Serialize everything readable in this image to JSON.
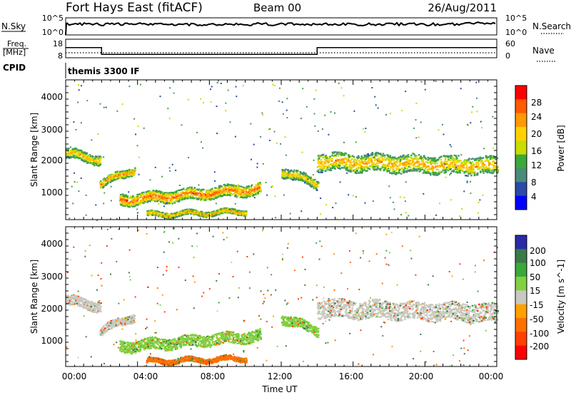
{
  "header": {
    "station": "Fort Hays East (fitACF)",
    "beam": "Beam 00",
    "date": "26/Aug/2011"
  },
  "noise_panel": {
    "left_label": "N.Sky",
    "right_label": "N.Search",
    "left_ticks": [
      "10^5",
      "10^0"
    ],
    "right_ticks": [
      "10^5",
      "10^0"
    ]
  },
  "freq_panel": {
    "left_label_top": "Freq.",
    "left_label_unit": "[MHz]",
    "right_label": "Nave",
    "left_ticks": [
      "18",
      "8"
    ],
    "right_ticks": [
      "60",
      "0"
    ],
    "freq_mhz_series": [
      {
        "from_ut": 0.0,
        "to_ut": 2.0,
        "mhz": 15.5
      },
      {
        "from_ut": 2.0,
        "to_ut": 14.0,
        "mhz": 10.5
      },
      {
        "from_ut": 14.0,
        "to_ut": 24.0,
        "mhz": 15.5
      }
    ]
  },
  "cpid_panel": {
    "label": "CPID",
    "program": "themis 3300 IF"
  },
  "x_axis": {
    "label": "Time UT",
    "ticks": [
      "00:00",
      "04:00",
      "08:00",
      "12:00",
      "16:00",
      "20:00",
      "00:00"
    ],
    "range_hours": [
      0,
      24
    ]
  },
  "power_colorbar": {
    "label": "Power [dB]",
    "ticks": [
      "28",
      "24",
      "20",
      "16",
      "12",
      "8",
      "4"
    ],
    "colors": [
      "#ff0000",
      "#ff5a00",
      "#ff9a00",
      "#ffd200",
      "#c8dc00",
      "#3aa83a",
      "#4a8a7a",
      "#2a4aa8",
      "#0000ff"
    ]
  },
  "velocity_colorbar": {
    "label": "Velocity [m s^-1]",
    "ticks": [
      "200",
      "100",
      "50",
      "15",
      "-15",
      "-50",
      "-100",
      "-200"
    ],
    "colors": [
      "#2a2aa8",
      "#3a7a4a",
      "#3aa83a",
      "#80d040",
      "#c8c8c0",
      "#ffa000",
      "#ff7000",
      "#ff4000",
      "#ff0000"
    ]
  },
  "chart_data": [
    {
      "type": "heatmap",
      "title": "",
      "xlabel": "Time UT",
      "ylabel": "Slant Range [km]",
      "colorbar_label": "Power [dB]",
      "xlim_hours": [
        0,
        24
      ],
      "ylim_km": [
        180,
        4500
      ],
      "y_ticks": [
        "1000",
        "2000",
        "3000",
        "4000"
      ],
      "value_range_db": [
        0,
        30
      ],
      "echo_bands": [
        {
          "from_ut": 0.0,
          "to_ut": 1.9,
          "range_start_km": 2250,
          "range_end_km": 2050,
          "width_km": 300,
          "peak_db": 22
        },
        {
          "from_ut": 1.9,
          "to_ut": 3.8,
          "range_start_km": 1300,
          "range_end_km": 1750,
          "width_km": 250,
          "peak_db": 24
        },
        {
          "from_ut": 3.0,
          "to_ut": 10.8,
          "range_start_km": 800,
          "range_end_km": 1150,
          "width_km": 350,
          "peak_db": 26
        },
        {
          "from_ut": 4.5,
          "to_ut": 10.0,
          "range_start_km": 350,
          "range_end_km": 450,
          "width_km": 150,
          "peak_db": 24
        },
        {
          "from_ut": 12.0,
          "to_ut": 14.0,
          "range_start_km": 1700,
          "range_end_km": 1300,
          "width_km": 300,
          "peak_db": 20
        },
        {
          "from_ut": 14.0,
          "to_ut": 24.0,
          "range_start_km": 2000,
          "range_end_km": 1850,
          "width_km": 550,
          "peak_db": 22
        }
      ]
    },
    {
      "type": "heatmap",
      "title": "",
      "xlabel": "Time UT",
      "ylabel": "Slant Range [km]",
      "colorbar_label": "Velocity [m s^-1]",
      "xlim_hours": [
        0,
        24
      ],
      "ylim_km": [
        180,
        4500
      ],
      "y_ticks": [
        "1000",
        "2000",
        "3000",
        "4000"
      ],
      "value_range_ms": [
        -200,
        200
      ],
      "echo_bands": [
        {
          "from_ut": 0.0,
          "to_ut": 1.9,
          "range_start_km": 2250,
          "range_end_km": 2050,
          "width_km": 300,
          "velocity_ms": 0
        },
        {
          "from_ut": 1.9,
          "to_ut": 3.8,
          "range_start_km": 1300,
          "range_end_km": 1750,
          "width_km": 250,
          "velocity_ms": 0
        },
        {
          "from_ut": 3.0,
          "to_ut": 10.8,
          "range_start_km": 800,
          "range_end_km": 1150,
          "width_km": 350,
          "velocity_ms": 30
        },
        {
          "from_ut": 4.5,
          "to_ut": 10.0,
          "range_start_km": 350,
          "range_end_km": 450,
          "width_km": 150,
          "velocity_ms": -60
        },
        {
          "from_ut": 12.0,
          "to_ut": 14.0,
          "range_start_km": 1700,
          "range_end_km": 1300,
          "width_km": 300,
          "velocity_ms": 40
        },
        {
          "from_ut": 14.0,
          "to_ut": 24.0,
          "range_start_km": 2000,
          "range_end_km": 1850,
          "width_km": 550,
          "velocity_ms": 0
        }
      ]
    }
  ]
}
